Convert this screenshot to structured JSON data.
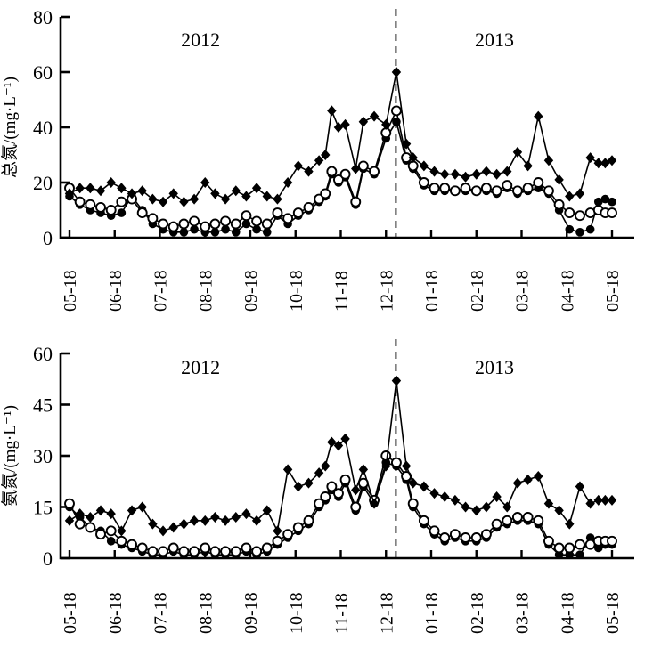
{
  "figure": {
    "background": "#ffffff",
    "line_color": "#000000",
    "marker_color": "#000000",
    "open_marker_fill": "#ffffff"
  },
  "chart_data": [
    {
      "type": "line",
      "panel": "top",
      "ylabel": "总氮/(mg·L⁻¹)",
      "ylim": [
        0,
        80
      ],
      "yticks": [
        0,
        20,
        40,
        60,
        80
      ],
      "xtick_labels": [
        "05-18",
        "06-18",
        "07-18",
        "08-18",
        "09-18",
        "10-18",
        "11-18",
        "12-18",
        "01-18",
        "02-18",
        "03-18",
        "04-18",
        "05-18"
      ],
      "grid": false,
      "legend": "none",
      "divider_x": 7.22,
      "annotations": [
        {
          "text": "2012",
          "x": 2.9
        },
        {
          "text": "2013",
          "x": 9.4
        }
      ],
      "x": [
        0,
        0.23,
        0.46,
        0.69,
        0.92,
        1.15,
        1.38,
        1.61,
        1.84,
        2.07,
        2.3,
        2.53,
        2.76,
        3,
        3.22,
        3.45,
        3.68,
        3.91,
        4.14,
        4.37,
        4.6,
        4.83,
        5.06,
        5.29,
        5.52,
        5.66,
        5.8,
        5.95,
        6.1,
        6.33,
        6.5,
        6.74,
        7,
        7.23,
        7.45,
        7.6,
        7.84,
        8.07,
        8.3,
        8.53,
        8.76,
        9,
        9.22,
        9.45,
        9.68,
        9.91,
        10.14,
        10.37,
        10.6,
        10.83,
        11.06,
        11.29,
        11.52,
        11.7,
        11.85,
        12
      ],
      "series": [
        {
          "name": "filled-circle-series",
          "marker": "filled-circle",
          "y": [
            15,
            12,
            10,
            9,
            8,
            9,
            15,
            10,
            5,
            3,
            2,
            2,
            3,
            2,
            2,
            3,
            2,
            5,
            3,
            2,
            8,
            5,
            8,
            10,
            13,
            15,
            23,
            20,
            22,
            12,
            25,
            23,
            36,
            42,
            28,
            25,
            19,
            17,
            17,
            17,
            17,
            17,
            17,
            16,
            18,
            16,
            17,
            18,
            16,
            10,
            3,
            2,
            3,
            13,
            14,
            13
          ]
        },
        {
          "name": "open-circle-series",
          "marker": "open-circle",
          "y": [
            18,
            13,
            12,
            11,
            10,
            13,
            14,
            9,
            7,
            5,
            4,
            5,
            6,
            4,
            5,
            6,
            5,
            8,
            6,
            5,
            9,
            7,
            9,
            11,
            14,
            16,
            24,
            21,
            23,
            13,
            26,
            24,
            38,
            46,
            29,
            26,
            20,
            18,
            18,
            17,
            18,
            17,
            18,
            17,
            19,
            17,
            18,
            20,
            17,
            12,
            9,
            8,
            9,
            10,
            9,
            9
          ]
        },
        {
          "name": "filled-diamond-series",
          "marker": "filled-diamond",
          "y": [
            16,
            18,
            18,
            17,
            20,
            18,
            16,
            17,
            14,
            13,
            16,
            13,
            14,
            20,
            16,
            14,
            17,
            15,
            18,
            15,
            14,
            20,
            26,
            24,
            28,
            30,
            46,
            40,
            41,
            25,
            42,
            44,
            41,
            60,
            34,
            29,
            26,
            24,
            23,
            23,
            22,
            23,
            24,
            23,
            24,
            31,
            26,
            44,
            28,
            21,
            15,
            16,
            29,
            27,
            27,
            28
          ]
        }
      ]
    },
    {
      "type": "line",
      "panel": "bottom",
      "ylabel": "氨氮/(mg·L⁻¹)",
      "ylim": [
        0,
        60
      ],
      "yticks": [
        0,
        15,
        30,
        45,
        60
      ],
      "xtick_labels": [
        "05-18",
        "06-18",
        "07-18",
        "08-18",
        "09-18",
        "10-18",
        "11-18",
        "12-18",
        "01-18",
        "02-18",
        "03-18",
        "04-18",
        "05-18"
      ],
      "grid": false,
      "legend": "none",
      "divider_x": 7.22,
      "annotations": [
        {
          "text": "2012",
          "x": 2.9
        },
        {
          "text": "2013",
          "x": 9.4
        }
      ],
      "x": [
        0,
        0.23,
        0.46,
        0.69,
        0.92,
        1.15,
        1.38,
        1.61,
        1.84,
        2.07,
        2.3,
        2.53,
        2.76,
        3,
        3.22,
        3.45,
        3.68,
        3.91,
        4.14,
        4.37,
        4.6,
        4.83,
        5.06,
        5.29,
        5.52,
        5.66,
        5.8,
        5.95,
        6.1,
        6.33,
        6.5,
        6.74,
        7,
        7.23,
        7.45,
        7.6,
        7.84,
        8.07,
        8.3,
        8.53,
        8.76,
        9,
        9.22,
        9.45,
        9.68,
        9.91,
        10.14,
        10.37,
        10.6,
        10.83,
        11.06,
        11.29,
        11.52,
        11.7,
        11.85,
        12
      ],
      "series": [
        {
          "name": "filled-circle-series",
          "marker": "filled-circle",
          "y": [
            15,
            12,
            9,
            8,
            5,
            4,
            3,
            2,
            1,
            1,
            2,
            1,
            1,
            2,
            1,
            1,
            1,
            2,
            1,
            2,
            4,
            6,
            8,
            10,
            15,
            17,
            20,
            18,
            22,
            14,
            21,
            16,
            28,
            27,
            23,
            15,
            10,
            7,
            5,
            6,
            5,
            5,
            6,
            9,
            10,
            11,
            11,
            10,
            4,
            1,
            1,
            1,
            6,
            3,
            4,
            4
          ]
        },
        {
          "name": "open-circle-series",
          "marker": "open-circle",
          "y": [
            16,
            10,
            9,
            7,
            8,
            5,
            4,
            3,
            2,
            2,
            3,
            2,
            2,
            3,
            2,
            2,
            2,
            3,
            2,
            3,
            5,
            7,
            9,
            11,
            16,
            18,
            21,
            19,
            23,
            15,
            22,
            17,
            30,
            28,
            24,
            16,
            11,
            8,
            6,
            7,
            6,
            6,
            7,
            10,
            11,
            12,
            12,
            11,
            5,
            3,
            3,
            4,
            4,
            5,
            5,
            5
          ]
        },
        {
          "name": "filled-diamond-series",
          "marker": "filled-diamond",
          "y": [
            11,
            13,
            12,
            14,
            13,
            8,
            14,
            15,
            10,
            8,
            9,
            10,
            11,
            11,
            12,
            11,
            12,
            13,
            11,
            14,
            8,
            26,
            21,
            22,
            25,
            27,
            34,
            33,
            35,
            20,
            26,
            16,
            27,
            52,
            27,
            22,
            21,
            19,
            18,
            17,
            15,
            14,
            15,
            18,
            15,
            22,
            23,
            24,
            16,
            14,
            10,
            21,
            16,
            17,
            17,
            17
          ]
        }
      ]
    }
  ]
}
